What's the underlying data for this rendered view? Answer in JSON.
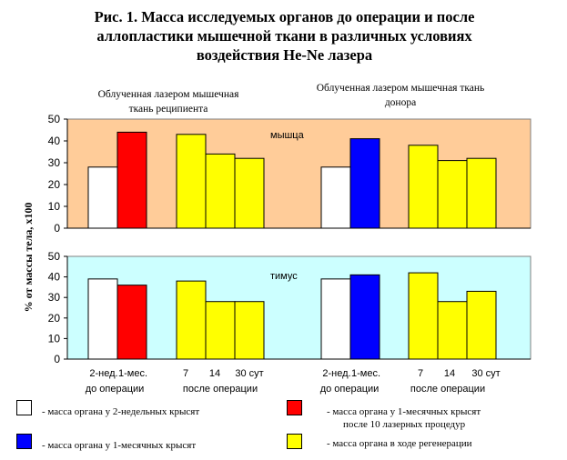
{
  "title_lines": [
    "Рис. 1. Масса исследуемых органов до операции и после",
    "аллопластики мышечной ткани в различных условиях",
    "воздействия He-Ne лазера"
  ],
  "subtitles": {
    "recipient": [
      "Облученная лазером мышечная",
      "ткань реципиента"
    ],
    "donor": [
      "Облученная лазером мышечная ткань",
      "донора"
    ]
  },
  "colors": {
    "muscle_bg": "#FFCC99",
    "thymus_bg": "#CCFFFF",
    "white": "#FFFFFF",
    "red": "#FF0000",
    "blue": "#0000FF",
    "yellow": "#FFFF00"
  },
  "legend": [
    {
      "color": "#FFFFFF",
      "lines": [
        "- масса органа у 2-недельных крысят"
      ]
    },
    {
      "color": "#FF0000",
      "lines": [
        "- масса органа у 1-месячных крысят",
        "после 10 лазерных процедур"
      ]
    },
    {
      "color": "#0000FF",
      "lines": [
        "- масса органа у 1-месячных крысят"
      ]
    },
    {
      "color": "#FFFF00",
      "lines": [
        "- масса органа в ходе регенерации"
      ]
    }
  ],
  "chart_data": [
    {
      "type": "bar",
      "annotation": "мышца",
      "ylabel": "% от массы тела, х100",
      "ylim": [
        0,
        50
      ],
      "yticks": [
        0,
        10,
        20,
        30,
        40,
        50
      ],
      "bars": [
        {
          "value": 28,
          "color": "white"
        },
        {
          "value": 44,
          "color": "red"
        },
        {
          "value": 43,
          "color": "yellow"
        },
        {
          "value": 34,
          "color": "yellow"
        },
        {
          "value": 32,
          "color": "yellow"
        },
        {
          "value": 28,
          "color": "white"
        },
        {
          "value": 41,
          "color": "blue"
        },
        {
          "value": 38,
          "color": "yellow"
        },
        {
          "value": 31,
          "color": "yellow"
        },
        {
          "value": 32,
          "color": "yellow"
        }
      ]
    },
    {
      "type": "bar",
      "annotation": "тимус",
      "ylim": [
        0,
        50
      ],
      "yticks": [
        0,
        10,
        20,
        30,
        40,
        50
      ],
      "bars": [
        {
          "value": 39,
          "color": "white"
        },
        {
          "value": 36,
          "color": "red"
        },
        {
          "value": 38,
          "color": "yellow"
        },
        {
          "value": 28,
          "color": "yellow"
        },
        {
          "value": 28,
          "color": "yellow"
        },
        {
          "value": 39,
          "color": "white"
        },
        {
          "value": 41,
          "color": "blue"
        },
        {
          "value": 42,
          "color": "yellow"
        },
        {
          "value": 28,
          "color": "yellow"
        },
        {
          "value": 33,
          "color": "yellow"
        }
      ],
      "xlabels_row1": [
        "2-нед.",
        "1-мес.",
        "7",
        "14",
        "30 сут",
        "2-нед.",
        "1-мес.",
        "7",
        "14",
        "30 сут"
      ],
      "xlabels_row2": [
        "до операции",
        "после операции",
        "до операции",
        "после операции"
      ]
    }
  ]
}
